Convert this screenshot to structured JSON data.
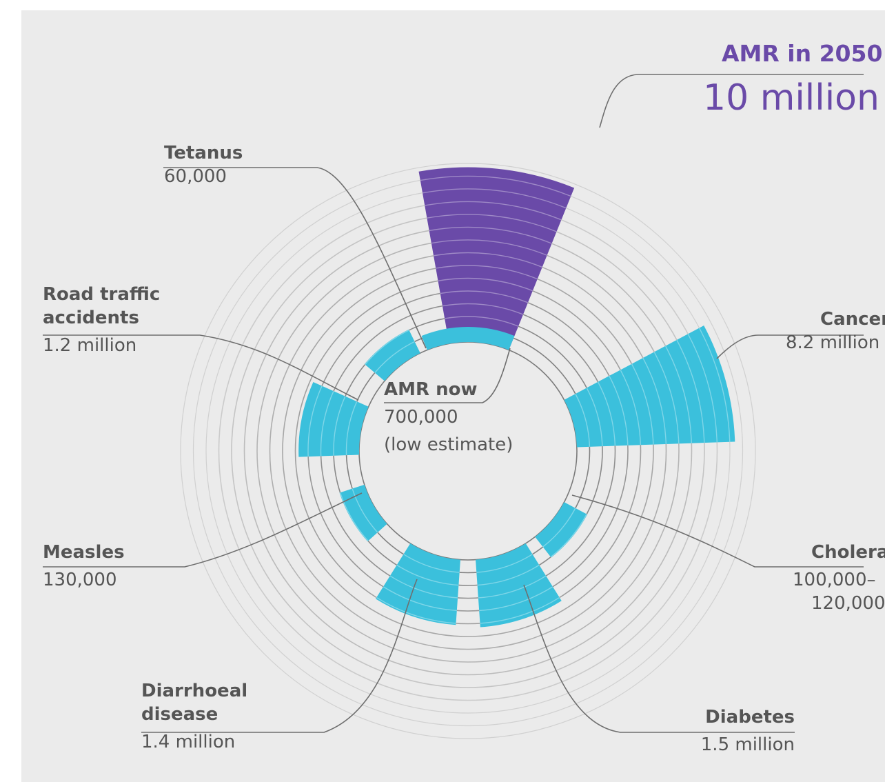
{
  "colors": {
    "background": "#ebebeb",
    "amr_future": "#6a4aa8",
    "other": "#3bc0dc",
    "ring": "#7a7a7a",
    "text": "#555555"
  },
  "chart_data": {
    "type": "radial-bar",
    "title": "",
    "center": {
      "label": "AMR now",
      "value": "700,000",
      "note": "(low estimate)",
      "deaths": 700000
    },
    "callout": {
      "label": "AMR in 2050",
      "value": "10 million",
      "deaths": 10000000
    },
    "rings": 11,
    "categories": [
      {
        "name": "AMR in 2050",
        "value_label": "10 million",
        "deaths": 10000000,
        "start_deg": -10,
        "end_deg": 22,
        "color": "purple"
      },
      {
        "name": "Cancer",
        "value_label": "8.2 million",
        "deaths": 8200000,
        "start_deg": 62,
        "end_deg": 88,
        "color": "cyan"
      },
      {
        "name": "Cholera",
        "value_label_1": "100,000–",
        "value_label_2": "120,000",
        "deaths": 110000,
        "start_deg": 118,
        "end_deg": 142,
        "color": "cyan"
      },
      {
        "name": "Diabetes",
        "value_label": "1.5 million",
        "deaths": 1500000,
        "start_deg": 148,
        "end_deg": 176,
        "color": "cyan"
      },
      {
        "name": "Diarrhoeal disease",
        "value_label": "1.4 million",
        "deaths": 1400000,
        "start_deg": 184,
        "end_deg": 212,
        "color": "cyan"
      },
      {
        "name": "Measles",
        "value_label": "130,000",
        "deaths": 130000,
        "start_deg": 228,
        "end_deg": 252,
        "color": "cyan"
      },
      {
        "name": "Road traffic accidents",
        "value_label": "1.2 million",
        "deaths": 1200000,
        "start_deg": 268,
        "end_deg": 294,
        "color": "cyan"
      },
      {
        "name": "Tetanus",
        "value_label": "60,000",
        "deaths": 60000,
        "start_deg": 310,
        "end_deg": 334,
        "color": "cyan"
      }
    ]
  },
  "labels": {
    "tetanus": {
      "name": "Tetanus",
      "value": "60,000"
    },
    "road": {
      "name_1": "Road traffic",
      "name_2": "accidents",
      "value": "1.2 million"
    },
    "measles": {
      "name": "Measles",
      "value": "130,000"
    },
    "diarrhoea": {
      "name_1": "Diarrhoeal",
      "name_2": "disease",
      "value": "1.4 million"
    },
    "diabetes": {
      "name": "Diabetes",
      "value": "1.5 million"
    },
    "cholera": {
      "name": "Cholera",
      "value_1": "100,000–",
      "value_2": "120,000"
    },
    "cancer": {
      "name": "Cancer",
      "value": "8.2 million"
    },
    "amr_now": {
      "name": "AMR now",
      "value": "700,000",
      "note": "(low estimate)"
    },
    "amr_future": {
      "name": "AMR in 2050",
      "value": "10 million"
    }
  }
}
